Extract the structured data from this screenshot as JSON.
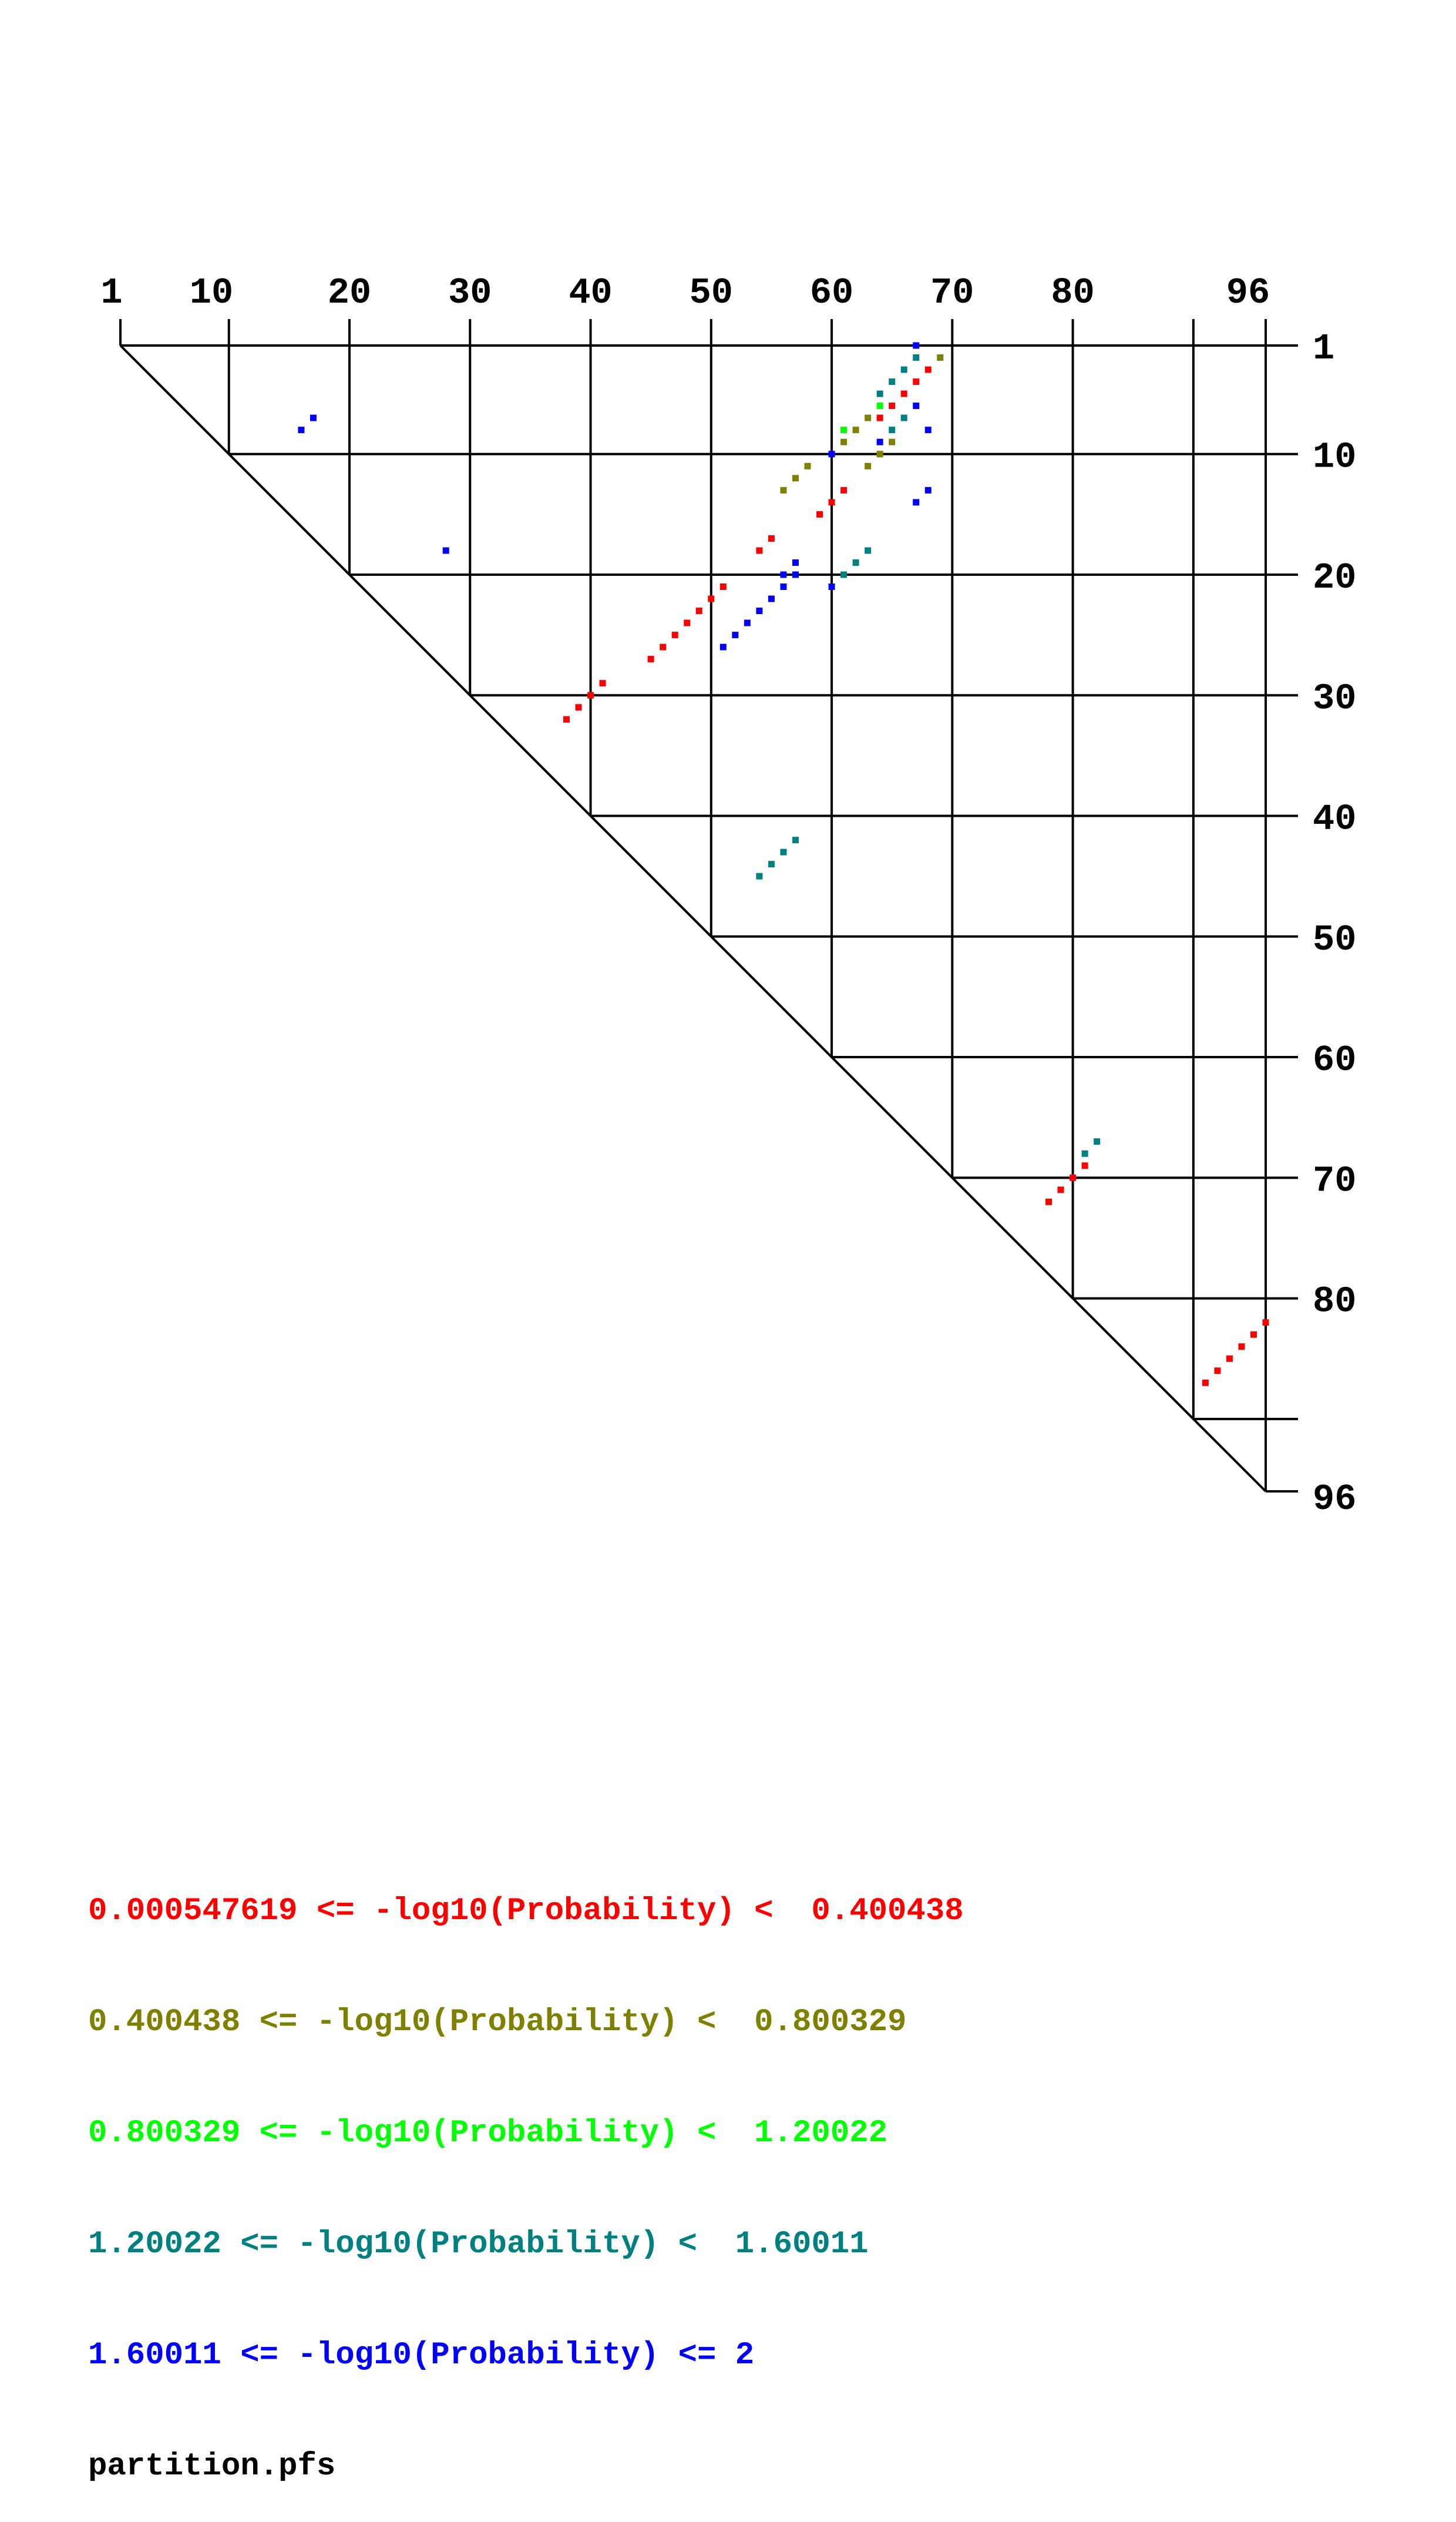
{
  "chart_data": {
    "type": "scatter",
    "title": "",
    "sequence_length": 96,
    "top_tick_labels": [
      "1",
      "10",
      "20",
      "30",
      "40",
      "50",
      "60",
      "70",
      "80",
      "96"
    ],
    "right_tick_labels": [
      "1",
      "10",
      "20",
      "30",
      "40",
      "50",
      "60",
      "70",
      "80",
      "96"
    ],
    "legend": [
      {
        "label": "0.000547619 <= -log10(Probability) <  0.400438",
        "color": "#ff0000"
      },
      {
        "label": "0.400438 <= -log10(Probability) <  0.800329",
        "color": "#808000"
      },
      {
        "label": "0.800329 <= -log10(Probability) <  1.20022",
        "color": "#00ff00"
      },
      {
        "label": "1.20022 <= -log10(Probability) <  1.60011",
        "color": "#008080"
      },
      {
        "label": "1.60011 <= -log10(Probability) <= 2",
        "color": "#0000ff"
      }
    ],
    "series": [
      {
        "name": "0.000547619 <= -log10(Probability) <  0.400438",
        "color": "#ff0000",
        "points": [
          [
            3,
            68
          ],
          [
            4,
            67
          ],
          [
            5,
            66
          ],
          [
            6,
            65
          ],
          [
            7,
            64
          ],
          [
            13,
            61
          ],
          [
            14,
            60
          ],
          [
            15,
            59
          ],
          [
            17,
            55
          ],
          [
            18,
            54
          ],
          [
            21,
            51
          ],
          [
            22,
            50
          ],
          [
            23,
            49
          ],
          [
            24,
            48
          ],
          [
            25,
            47
          ],
          [
            26,
            46
          ],
          [
            27,
            45
          ],
          [
            29,
            41
          ],
          [
            30,
            40
          ],
          [
            31,
            39
          ],
          [
            32,
            38
          ],
          [
            69,
            81
          ],
          [
            70,
            80
          ],
          [
            71,
            79
          ],
          [
            72,
            78
          ],
          [
            82,
            96
          ],
          [
            83,
            95
          ],
          [
            84,
            94
          ],
          [
            85,
            93
          ],
          [
            86,
            92
          ],
          [
            87,
            91
          ]
        ]
      },
      {
        "name": "0.400438 <= -log10(Probability) <  0.800329",
        "color": "#808000",
        "points": [
          [
            2,
            69
          ],
          [
            7,
            63
          ],
          [
            8,
            62
          ],
          [
            9,
            61
          ],
          [
            9,
            65
          ],
          [
            10,
            64
          ],
          [
            11,
            63
          ],
          [
            11,
            58
          ],
          [
            12,
            57
          ],
          [
            13,
            56
          ]
        ]
      },
      {
        "name": "0.800329 <= -log10(Probability) <  1.20022",
        "color": "#00ff00",
        "points": [
          [
            6,
            64
          ],
          [
            8,
            61
          ]
        ]
      },
      {
        "name": "1.20022 <= -log10(Probability) <  1.60011",
        "color": "#008080",
        "points": [
          [
            2,
            67
          ],
          [
            3,
            66
          ],
          [
            4,
            65
          ],
          [
            5,
            64
          ],
          [
            7,
            66
          ],
          [
            8,
            65
          ],
          [
            18,
            63
          ],
          [
            19,
            62
          ],
          [
            20,
            61
          ],
          [
            42,
            57
          ],
          [
            43,
            56
          ],
          [
            44,
            55
          ],
          [
            45,
            54
          ],
          [
            67,
            82
          ],
          [
            68,
            81
          ]
        ]
      },
      {
        "name": "1.60011 <= -log10(Probability) <= 2",
        "color": "#0000ff",
        "points": [
          [
            1,
            67
          ],
          [
            6,
            67
          ],
          [
            7,
            17
          ],
          [
            8,
            16
          ],
          [
            8,
            68
          ],
          [
            9,
            64
          ],
          [
            10,
            60
          ],
          [
            13,
            68
          ],
          [
            14,
            67
          ],
          [
            18,
            28
          ],
          [
            19,
            57
          ],
          [
            20,
            56
          ],
          [
            20,
            57
          ],
          [
            21,
            56
          ],
          [
            21,
            60
          ],
          [
            22,
            55
          ],
          [
            23,
            54
          ],
          [
            24,
            53
          ],
          [
            25,
            52
          ],
          [
            26,
            51
          ]
        ]
      }
    ]
  },
  "footer": {
    "filename": "partition.pfs"
  }
}
